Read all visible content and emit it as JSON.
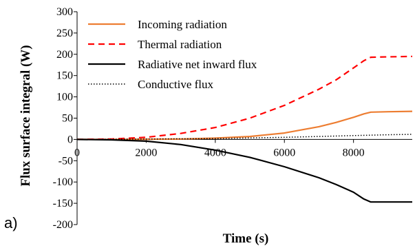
{
  "panel_label": "a)",
  "chart_data": {
    "type": "line",
    "title": "",
    "xlabel": "Time (s)",
    "ylabel": "Flux surface integral (W)",
    "xlim": [
      0,
      9700
    ],
    "ylim": [
      -200,
      300
    ],
    "x_ticks": [
      0,
      2000,
      4000,
      6000,
      8000
    ],
    "y_ticks": [
      300,
      250,
      200,
      150,
      100,
      50,
      0,
      -50,
      -100,
      -150,
      -200
    ],
    "grid": false,
    "legend_position": "top-left",
    "series": [
      {
        "name": "Incoming radiation",
        "color": "#ED7D31",
        "style": "solid",
        "x": [
          0,
          1000,
          2000,
          3000,
          4000,
          5000,
          6000,
          7000,
          7500,
          8000,
          8300,
          8500,
          9000,
          9700
        ],
        "y": [
          0,
          0,
          0.5,
          1,
          3,
          7,
          15,
          30,
          40,
          52,
          60,
          64,
          65,
          66
        ]
      },
      {
        "name": "Thermal radiation",
        "color": "#FF0000",
        "style": "dashed",
        "x": [
          0,
          1000,
          2000,
          3000,
          4000,
          5000,
          6000,
          7000,
          7500,
          8000,
          8300,
          8500,
          9000,
          9700
        ],
        "y": [
          0,
          1,
          5,
          14,
          28,
          50,
          80,
          118,
          140,
          168,
          185,
          193,
          194,
          195
        ]
      },
      {
        "name": "Radiative net inward flux",
        "color": "#000000",
        "style": "solid",
        "x": [
          0,
          1000,
          2000,
          3000,
          4000,
          5000,
          6000,
          7000,
          7500,
          8000,
          8300,
          8500,
          9000,
          9700
        ],
        "y": [
          0,
          -1,
          -4,
          -12,
          -25,
          -42,
          -64,
          -90,
          -106,
          -124,
          -140,
          -147,
          -147,
          -147
        ]
      },
      {
        "name": "Conductive flux",
        "color": "#000000",
        "style": "dotted",
        "x": [
          0,
          2000,
          4000,
          6000,
          7000,
          8000,
          8500,
          9000,
          9700
        ],
        "y": [
          0,
          1,
          2,
          5,
          7,
          9,
          10,
          11,
          12
        ]
      }
    ]
  }
}
